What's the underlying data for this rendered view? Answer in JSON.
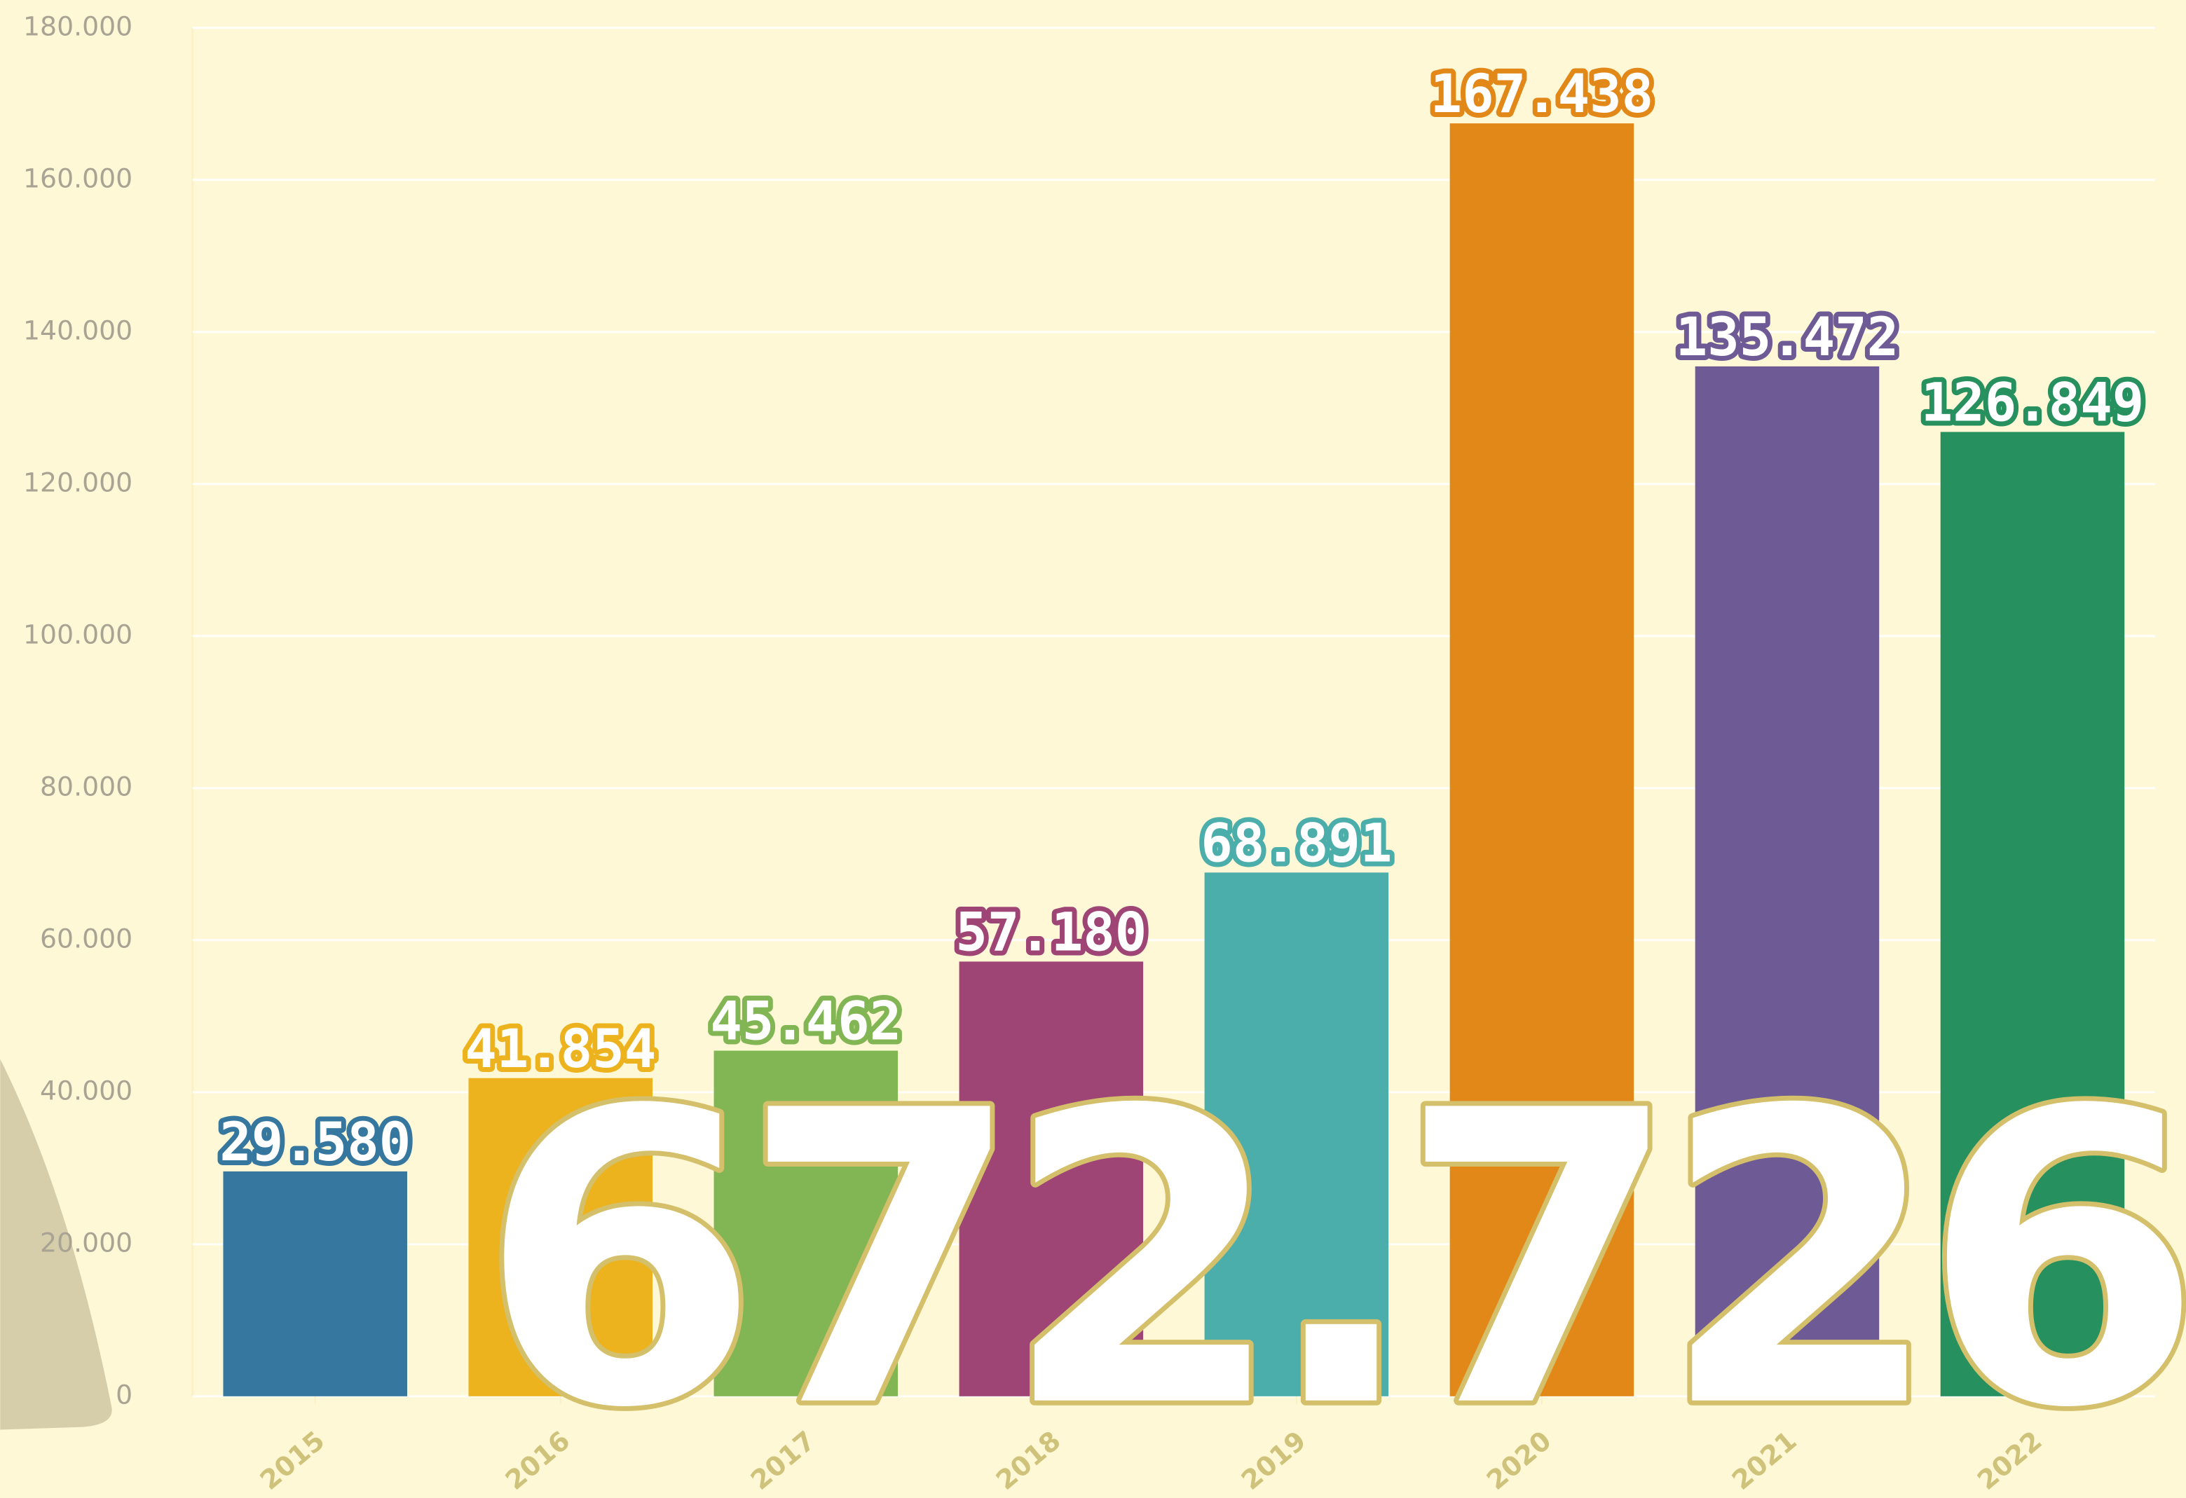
{
  "chart_data": {
    "type": "bar",
    "categories": [
      "2015",
      "2016",
      "2017",
      "2018",
      "2019",
      "2020",
      "2021",
      "2022"
    ],
    "values": [
      29580,
      41854,
      45462,
      57180,
      68891,
      167438,
      135472,
      126849
    ],
    "value_labels": [
      "29.580",
      "41.854",
      "45.462",
      "57.180",
      "68.891",
      "167.438",
      "135.472",
      "126.849"
    ],
    "colors": [
      "#35779e",
      "#ecb31f",
      "#82b554",
      "#9e4576",
      "#4caeaa",
      "#e28819",
      "#6e5a94",
      "#26905e"
    ],
    "ylim": [
      0,
      180000
    ],
    "yticks": [
      0,
      {
        "value": 20000,
        "label": "20.000"
      },
      {
        "value": 40000,
        "label": "40.000"
      },
      {
        "value": 60000,
        "label": "60.000"
      },
      {
        "value": 80000,
        "label": "80.000"
      },
      {
        "value": 100000,
        "label": "100.000"
      },
      {
        "value": 120000,
        "label": "120.000"
      },
      {
        "value": 140000,
        "label": "140.000"
      },
      {
        "value": 160000,
        "label": "160.000"
      },
      {
        "value": 180000,
        "label": "180.000"
      }
    ],
    "grid": true,
    "annotation": "672.726"
  }
}
